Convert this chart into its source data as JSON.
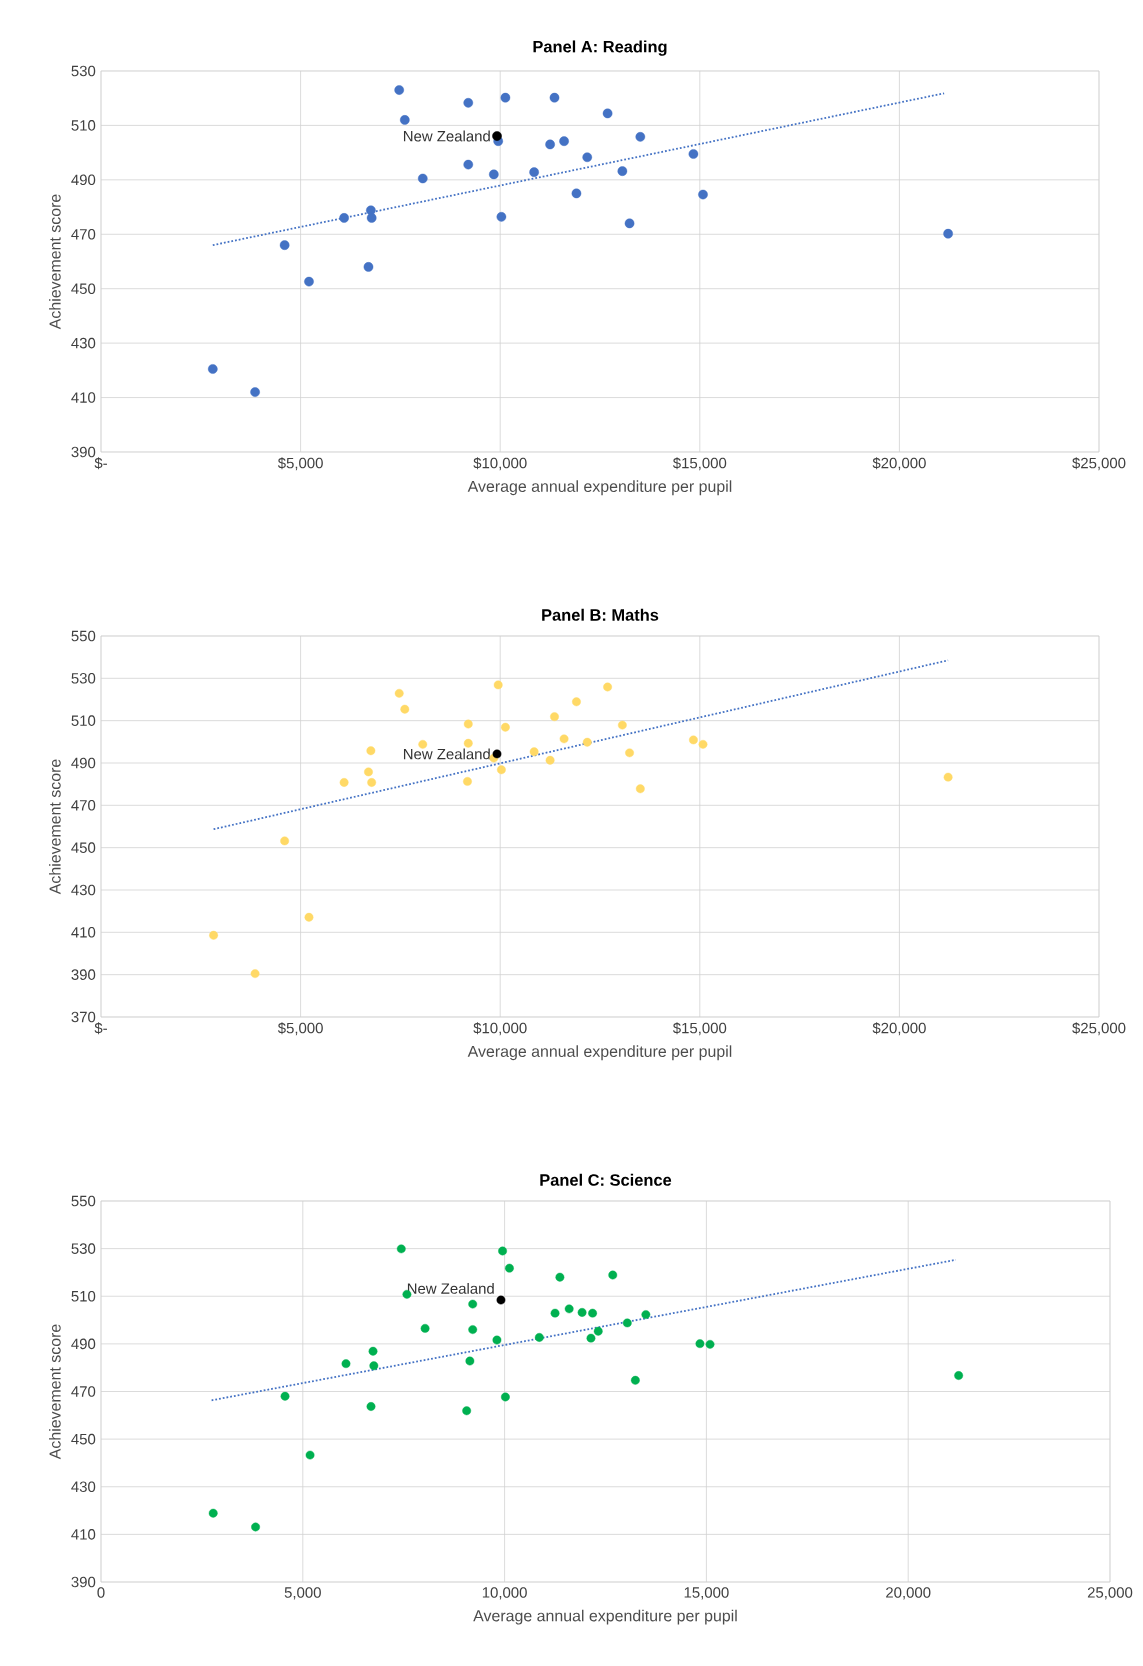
{
  "chart_data": [
    {
      "type": "scatter",
      "title": "Panel A: Reading",
      "xlabel": "Average annual expenditure per pupil",
      "ylabel": "Achievement score",
      "xlim": [
        0,
        25000
      ],
      "ylim": [
        390,
        530
      ],
      "xticks": [
        {
          "value": 0,
          "label": "$-"
        },
        {
          "value": 5000,
          "label": "$5,000"
        },
        {
          "value": 10000,
          "label": "$10,000"
        },
        {
          "value": 15000,
          "label": "$15,000"
        },
        {
          "value": 20000,
          "label": "$20,000"
        },
        {
          "value": 25000,
          "label": "$25,000"
        }
      ],
      "yticks": [
        390,
        410,
        430,
        450,
        470,
        490,
        510,
        530
      ],
      "grid": true,
      "marker": "circle",
      "series": [
        {
          "color": "#4472c4",
          "x": [
            2800,
            3860,
            4600,
            5210,
            6090,
            6700,
            6760,
            6780,
            7470,
            7610,
            8060,
            9200,
            9200,
            9840,
            9950,
            10030,
            10130,
            10850,
            11250,
            11360,
            11600,
            11910,
            12180,
            12690,
            13060,
            13240,
            13510,
            14840,
            15080,
            21220
          ],
          "values": [
            420.5,
            412,
            466,
            452.6,
            476,
            458,
            478.8,
            476,
            523,
            512,
            490.5,
            518.3,
            495.6,
            492,
            504.2,
            476.4,
            520.2,
            492.8,
            503,
            520.2,
            504.2,
            485,
            498.3,
            514.4,
            493.2,
            474,
            505.8,
            499.5,
            484.6,
            470.2
          ]
        },
        {
          "name": "New Zealand",
          "color": "#000000",
          "x": [
            9920
          ],
          "values": [
            506.1
          ]
        },
        {
          "type": "line",
          "color": "#4472c4",
          "marker": "none",
          "line_style": "dotted",
          "x": [
            2800,
            21120
          ],
          "values": [
            466,
            521.8
          ]
        }
      ]
    },
    {
      "type": "scatter",
      "title": "Panel B: Maths",
      "xlabel": "Average annual expenditure per pupil",
      "ylabel": "Achievement score",
      "xlim": [
        0,
        25000
      ],
      "ylim": [
        370,
        550
      ],
      "xticks": [
        {
          "value": 0,
          "label": "$-"
        },
        {
          "value": 5000,
          "label": "$5,000"
        },
        {
          "value": 10000,
          "label": "$10,000"
        },
        {
          "value": 15000,
          "label": "$15,000"
        },
        {
          "value": 20000,
          "label": "$20,000"
        },
        {
          "value": 25000,
          "label": "$25,000"
        }
      ],
      "yticks": [
        370,
        390,
        410,
        430,
        450,
        470,
        490,
        510,
        530,
        550
      ],
      "grid": true,
      "marker": "circle",
      "series": [
        {
          "color": "#ffd966",
          "x": [
            2820,
            3860,
            4600,
            5210,
            6090,
            6700,
            6760,
            6780,
            7470,
            7610,
            8060,
            9200,
            9200,
            9180,
            9840,
            9950,
            10030,
            10130,
            10850,
            11250,
            11360,
            11600,
            11910,
            12180,
            12690,
            13060,
            13240,
            13510,
            14840,
            15080,
            21220
          ],
          "values": [
            408.6,
            390.5,
            453.2,
            417.1,
            480.8,
            485.8,
            495.8,
            480.8,
            522.9,
            515.4,
            498.8,
            508.4,
            499.3,
            481.3,
            492.3,
            526.9,
            486.8,
            506.9,
            495.3,
            491.3,
            511.9,
            501.4,
            518.9,
            499.8,
            525.9,
            507.9,
            494.8,
            477.8,
            500.9,
            498.8,
            483.3
          ]
        },
        {
          "name": "New Zealand",
          "color": "#000000",
          "x": [
            9920
          ],
          "values": [
            494.3
          ]
        },
        {
          "type": "line",
          "color": "#4472c4",
          "marker": "none",
          "line_style": "dotted",
          "x": [
            2820,
            21220
          ],
          "values": [
            458.7,
            538.5
          ]
        }
      ]
    },
    {
      "type": "scatter",
      "title": "Panel C: Science",
      "xlabel": "Average annual expenditure per pupil",
      "ylabel": "Achievement score",
      "xlim": [
        0,
        25000
      ],
      "ylim": [
        390,
        550
      ],
      "xticks": [
        0,
        {
          "value": 5000,
          "label": "5,000"
        },
        {
          "value": 10000,
          "label": "10,000"
        },
        {
          "value": 15000,
          "label": "15,000"
        },
        {
          "value": 20000,
          "label": "20,000"
        },
        {
          "value": 25000,
          "label": "25,000"
        }
      ],
      "yticks": [
        390,
        410,
        430,
        450,
        470,
        490,
        510,
        530,
        550
      ],
      "grid": true,
      "marker": "circle",
      "series": [
        {
          "color": "#00b050",
          "x": [
            2780,
            3830,
            4560,
            5180,
            6070,
            6690,
            6740,
            6760,
            7440,
            7580,
            8030,
            9060,
            9140,
            9210,
            9210,
            9810,
            9950,
            10120,
            10020,
            10860,
            11250,
            11370,
            11600,
            11920,
            12180,
            12140,
            12320,
            12680,
            13040,
            13240,
            13500,
            14840,
            15090,
            21250
          ],
          "values": [
            418.9,
            413.1,
            468,
            443.3,
            481.7,
            463.7,
            486.9,
            480.8,
            529.9,
            510.8,
            496.5,
            461.9,
            482.8,
            506.7,
            496,
            491.6,
            529,
            521.8,
            467.7,
            492.7,
            502.9,
            518,
            504.7,
            503.2,
            502.9,
            492.4,
            495.3,
            518.9,
            498.8,
            474.7,
            502.3,
            490.1,
            489.8,
            476.7
          ]
        },
        {
          "name": "New Zealand",
          "color": "#000000",
          "x": [
            9910
          ],
          "values": [
            508.4
          ]
        },
        {
          "type": "line",
          "color": "#4472c4",
          "marker": "none",
          "line_style": "dotted",
          "x": [
            2740,
            21180
          ],
          "values": [
            466.3,
            525.3
          ]
        }
      ]
    }
  ]
}
